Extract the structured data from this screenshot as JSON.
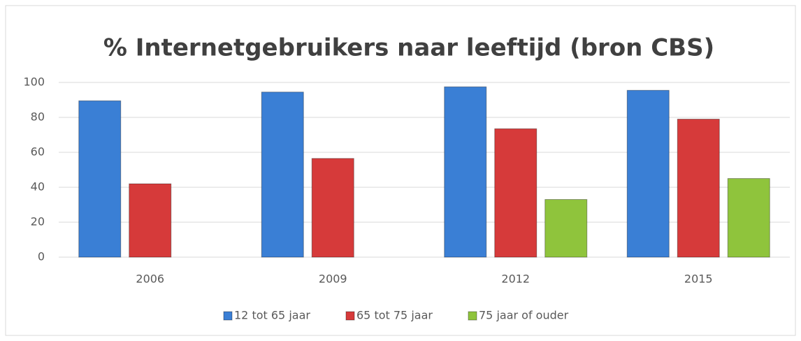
{
  "chart_data": {
    "type": "bar",
    "title": "% Internetgebruikers naar leeftijd (bron CBS)",
    "categories": [
      "2006",
      "2009",
      "2012",
      "2015"
    ],
    "series": [
      {
        "name": "12 tot 65 jaar",
        "color": "#3a7fd5",
        "values": [
          89.5,
          94.5,
          97.5,
          95.5
        ]
      },
      {
        "name": "65 tot 75 jaar",
        "color": "#d63a3a",
        "values": [
          42,
          56.5,
          73.5,
          79
        ]
      },
      {
        "name": "75 jaar of ouder",
        "color": "#8fc43c",
        "values": [
          null,
          null,
          33,
          45
        ]
      }
    ],
    "ylim": [
      0,
      100
    ],
    "yticks": [
      0,
      20,
      40,
      60,
      80,
      100
    ],
    "grid": true,
    "legend": "bottom"
  }
}
